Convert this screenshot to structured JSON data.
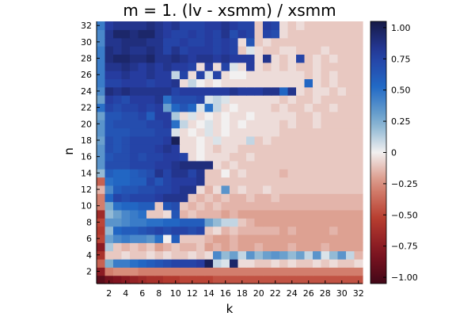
{
  "chart_data": {
    "type": "heatmap",
    "title": "m = 1. (lv - xsmm) / xsmm",
    "xlabel": "k",
    "ylabel": "n",
    "x": [
      1,
      2,
      3,
      4,
      5,
      6,
      7,
      8,
      9,
      10,
      11,
      12,
      13,
      14,
      15,
      16,
      17,
      18,
      19,
      20,
      21,
      22,
      23,
      24,
      25,
      26,
      27,
      28,
      29,
      30,
      31,
      32
    ],
    "y": [
      1,
      2,
      3,
      4,
      5,
      6,
      7,
      8,
      9,
      10,
      11,
      12,
      13,
      14,
      15,
      16,
      17,
      18,
      19,
      20,
      21,
      22,
      23,
      24,
      25,
      26,
      27,
      28,
      29,
      30,
      31,
      32
    ],
    "x_ticks": [
      2,
      4,
      6,
      8,
      10,
      12,
      14,
      16,
      18,
      20,
      22,
      24,
      26,
      28,
      30,
      32
    ],
    "y_ticks": [
      2,
      4,
      6,
      8,
      10,
      12,
      14,
      16,
      18,
      20,
      22,
      24,
      26,
      28,
      30,
      32
    ],
    "xlim": [
      0.5,
      32.5
    ],
    "ylim": [
      0.5,
      32.5
    ],
    "colorbar": {
      "colormap": "balance",
      "range": [
        -1.05,
        1.05
      ],
      "ticks": [
        -1.0,
        -0.75,
        -0.5,
        -0.25,
        0,
        0.25,
        0.5,
        0.75,
        1.0
      ],
      "tick_labels": [
        "−1.00",
        "−0.75",
        "−0.50",
        "−0.25",
        "0",
        "0.25",
        "0.50",
        "0.75",
        "1.00"
      ],
      "placement": "right"
    },
    "grid": false,
    "z": [
      [
        -0.95,
        -0.85,
        -0.8,
        -0.75,
        -0.7,
        -0.65,
        -0.6,
        -0.6,
        -0.55,
        -0.55,
        -0.5,
        -0.5,
        -0.5,
        -0.5,
        -0.45,
        -0.45,
        -0.45,
        -0.45,
        -0.45,
        -0.45,
        -0.45,
        -0.45,
        -0.45,
        -0.45,
        -0.45,
        -0.45,
        -0.45,
        -0.45,
        -0.45,
        -0.45,
        -0.45,
        -0.45
      ],
      [
        -0.75,
        -0.3,
        -0.25,
        -0.25,
        -0.25,
        -0.3,
        -0.3,
        -0.3,
        -0.3,
        -0.3,
        -0.3,
        -0.3,
        -0.3,
        -0.3,
        -0.3,
        -0.3,
        -0.3,
        -0.3,
        -0.3,
        -0.3,
        -0.3,
        -0.3,
        -0.3,
        -0.3,
        -0.3,
        -0.3,
        -0.3,
        -0.3,
        -0.3,
        -0.3,
        -0.3,
        -0.3
      ],
      [
        -0.4,
        0.25,
        0.45,
        0.45,
        0.5,
        0.55,
        0.6,
        0.65,
        0.7,
        0.75,
        0.75,
        0.75,
        0.8,
        1.0,
        0.1,
        0.05,
        0.95,
        -0.05,
        -0.05,
        -0.1,
        -0.1,
        -0.05,
        -0.1,
        -0.05,
        -0.1,
        -0.1,
        -0.05,
        -0.1,
        -0.05,
        -0.1,
        -0.1,
        -0.05
      ],
      [
        -0.6,
        -0.1,
        -0.1,
        -0.05,
        -0.1,
        -0.1,
        -0.05,
        -0.1,
        -0.05,
        -0.1,
        -0.1,
        -0.05,
        -0.1,
        -0.05,
        0.4,
        0.2,
        0.3,
        0.1,
        0.35,
        0.2,
        0.3,
        0.35,
        0.3,
        0.2,
        0.3,
        0.1,
        0.35,
        0.05,
        0.2,
        0.35,
        0.1,
        -0.15
      ],
      [
        -0.75,
        0.15,
        -0.1,
        -0.15,
        -0.1,
        -0.15,
        -0.1,
        -0.2,
        -0.15,
        -0.1,
        -0.15,
        -0.15,
        -0.1,
        -0.2,
        -0.15,
        -0.2,
        -0.15,
        -0.2,
        -0.2,
        -0.15,
        -0.2,
        -0.2,
        -0.2,
        -0.15,
        -0.2,
        -0.2,
        -0.2,
        -0.15,
        -0.2,
        -0.2,
        -0.2,
        -0.2
      ],
      [
        -0.5,
        0.3,
        0.4,
        0.45,
        0.4,
        0.4,
        0.35,
        0.5,
        0.0,
        0.6,
        -0.1,
        -0.1,
        -0.1,
        -0.15,
        -0.2,
        -0.2,
        -0.15,
        -0.2,
        -0.2,
        -0.2,
        -0.2,
        -0.2,
        -0.2,
        -0.2,
        -0.2,
        -0.2,
        -0.2,
        -0.2,
        -0.2,
        -0.2,
        -0.2,
        -0.2
      ],
      [
        -0.55,
        0.2,
        0.55,
        0.6,
        0.6,
        0.65,
        0.7,
        0.75,
        0.7,
        0.75,
        0.75,
        0.7,
        0.75,
        -0.1,
        -0.05,
        -0.15,
        -0.1,
        -0.15,
        -0.15,
        -0.15,
        -0.15,
        -0.15,
        -0.2,
        -0.15,
        -0.2,
        -0.2,
        -0.2,
        -0.2,
        -0.15,
        -0.2,
        -0.2,
        -0.2
      ],
      [
        -0.5,
        0.35,
        0.35,
        0.4,
        0.45,
        0.45,
        0.5,
        0.5,
        0.55,
        0.55,
        0.6,
        0.6,
        0.6,
        0.3,
        0.2,
        0.1,
        0.1,
        -0.1,
        -0.15,
        -0.2,
        -0.2,
        -0.2,
        -0.2,
        -0.2,
        -0.2,
        -0.2,
        -0.2,
        -0.2,
        -0.2,
        -0.2,
        -0.2,
        -0.2
      ],
      [
        -0.65,
        0.2,
        0.3,
        0.4,
        0.45,
        0.5,
        -0.1,
        -0.1,
        -0.05,
        0.65,
        -0.15,
        -0.1,
        -0.15,
        -0.15,
        -0.15,
        -0.2,
        -0.15,
        -0.2,
        -0.2,
        -0.2,
        -0.2,
        -0.2,
        -0.2,
        -0.2,
        -0.2,
        -0.2,
        -0.2,
        -0.2,
        -0.2,
        -0.2,
        -0.2,
        -0.2
      ],
      [
        -0.3,
        0.25,
        0.5,
        0.55,
        0.55,
        0.6,
        0.6,
        -0.1,
        0.65,
        0.7,
        -0.1,
        -0.15,
        -0.1,
        -0.15,
        -0.1,
        -0.15,
        -0.15,
        -0.15,
        -0.15,
        -0.15,
        -0.15,
        -0.15,
        -0.15,
        -0.15,
        -0.15,
        -0.15,
        -0.15,
        -0.15,
        -0.15,
        -0.15,
        -0.15,
        -0.15
      ],
      [
        -0.3,
        0.55,
        0.75,
        0.7,
        0.75,
        0.75,
        0.75,
        0.8,
        0.85,
        0.85,
        0.85,
        -0.1,
        -0.15,
        -0.1,
        -0.15,
        -0.1,
        -0.15,
        -0.15,
        -0.1,
        -0.15,
        -0.15,
        -0.1,
        -0.15,
        -0.15,
        -0.15,
        -0.15,
        -0.15,
        -0.15,
        -0.15,
        -0.15,
        -0.15,
        -0.15
      ],
      [
        -0.15,
        0.4,
        0.6,
        0.65,
        0.65,
        0.7,
        0.7,
        0.75,
        0.75,
        0.8,
        0.85,
        0.85,
        -0.05,
        -0.15,
        -0.05,
        0.35,
        -0.1,
        -0.05,
        -0.1,
        -0.1,
        -0.05,
        -0.1,
        -0.1,
        -0.1,
        -0.1,
        -0.1,
        -0.1,
        -0.1,
        -0.1,
        -0.1,
        -0.1,
        -0.1
      ],
      [
        -0.4,
        0.5,
        0.55,
        0.55,
        0.6,
        0.6,
        0.75,
        0.65,
        0.75,
        0.8,
        0.8,
        0.8,
        0.85,
        -0.1,
        -0.1,
        -0.1,
        -0.1,
        -0.1,
        -0.1,
        -0.1,
        -0.1,
        -0.1,
        -0.1,
        -0.1,
        -0.1,
        -0.1,
        -0.1,
        -0.1,
        -0.1,
        -0.1,
        -0.1,
        -0.1
      ],
      [
        0.2,
        0.6,
        0.55,
        0.55,
        0.6,
        0.65,
        0.7,
        0.85,
        0.75,
        0.85,
        0.85,
        0.75,
        0.85,
        -0.1,
        -0.1,
        0.0,
        -0.1,
        -0.05,
        -0.1,
        -0.1,
        -0.1,
        -0.1,
        -0.15,
        -0.1,
        -0.1,
        -0.1,
        -0.1,
        -0.1,
        -0.1,
        -0.1,
        -0.1,
        -0.1
      ],
      [
        0.35,
        0.7,
        0.7,
        0.7,
        0.75,
        0.75,
        0.75,
        0.8,
        0.8,
        0.85,
        0.9,
        0.9,
        0.9,
        0.9,
        -0.05,
        -0.1,
        -0.05,
        -0.1,
        -0.1,
        -0.1,
        -0.1,
        -0.1,
        -0.1,
        -0.1,
        -0.1,
        -0.1,
        -0.1,
        -0.1,
        -0.1,
        -0.1,
        -0.1,
        -0.1
      ],
      [
        0.35,
        0.65,
        0.7,
        0.7,
        0.75,
        0.7,
        0.75,
        0.75,
        0.8,
        0.8,
        0.75,
        -0.05,
        0.0,
        -0.05,
        -0.05,
        -0.05,
        -0.1,
        -0.1,
        -0.05,
        -0.1,
        -0.1,
        -0.1,
        -0.1,
        -0.1,
        -0.1,
        -0.1,
        -0.1,
        -0.1,
        -0.1,
        -0.1,
        -0.1,
        -0.1
      ],
      [
        0.35,
        0.7,
        0.65,
        0.7,
        0.75,
        0.75,
        0.75,
        0.8,
        0.85,
        0.8,
        -0.05,
        -0.05,
        0.0,
        -0.05,
        -0.1,
        -0.05,
        -0.05,
        -0.1,
        -0.1,
        -0.1,
        -0.1,
        -0.1,
        -0.1,
        -0.1,
        -0.1,
        -0.1,
        -0.1,
        -0.1,
        -0.1,
        -0.1,
        -0.1,
        -0.1
      ],
      [
        0.3,
        0.7,
        0.65,
        0.7,
        0.75,
        0.75,
        0.75,
        0.75,
        0.8,
        1.0,
        -0.05,
        -0.05,
        0.0,
        -0.05,
        0.05,
        -0.05,
        -0.05,
        -0.05,
        0.1,
        -0.1,
        -0.05,
        -0.1,
        -0.1,
        -0.1,
        -0.1,
        -0.1,
        -0.1,
        -0.1,
        -0.1,
        -0.1,
        -0.1,
        -0.1
      ],
      [
        0.35,
        0.65,
        0.65,
        0.65,
        0.7,
        0.7,
        0.7,
        0.75,
        0.75,
        0.05,
        -0.05,
        0.0,
        -0.05,
        0.05,
        -0.05,
        0.0,
        -0.05,
        -0.05,
        -0.05,
        -0.05,
        -0.05,
        -0.05,
        -0.1,
        -0.1,
        -0.1,
        -0.1,
        -0.1,
        -0.1,
        -0.1,
        -0.1,
        -0.1,
        -0.1
      ],
      [
        0.35,
        0.65,
        0.7,
        0.7,
        0.7,
        0.7,
        0.75,
        0.75,
        0.8,
        0.5,
        0.1,
        -0.05,
        0.0,
        0.05,
        -0.05,
        0.0,
        -0.05,
        0.0,
        -0.05,
        -0.05,
        -0.05,
        -0.05,
        -0.1,
        -0.05,
        -0.1,
        -0.1,
        -0.05,
        -0.1,
        -0.1,
        -0.1,
        -0.1,
        -0.1
      ],
      [
        0.3,
        0.65,
        0.65,
        0.7,
        0.7,
        0.75,
        0.6,
        0.8,
        0.8,
        0.15,
        -0.05,
        0.05,
        -0.05,
        0.0,
        -0.05,
        0.0,
        -0.05,
        -0.05,
        0.0,
        -0.05,
        -0.05,
        -0.05,
        -0.05,
        -0.05,
        -0.1,
        -0.1,
        -0.05,
        -0.1,
        -0.1,
        -0.1,
        -0.1,
        -0.1
      ],
      [
        0.5,
        0.75,
        0.7,
        0.75,
        0.75,
        0.8,
        0.75,
        0.8,
        0.3,
        0.55,
        0.65,
        0.55,
        0.05,
        0.5,
        0.1,
        -0.05,
        0.0,
        -0.05,
        -0.05,
        -0.05,
        -0.05,
        -0.1,
        -0.05,
        -0.1,
        -0.1,
        -0.05,
        -0.1,
        -0.1,
        -0.05,
        -0.1,
        -0.1,
        -0.1
      ],
      [
        0.3,
        0.8,
        0.75,
        0.7,
        0.8,
        0.8,
        0.8,
        0.85,
        0.5,
        0.7,
        0.7,
        0.7,
        0.75,
        0.05,
        0.1,
        0.05,
        -0.05,
        -0.05,
        -0.05,
        -0.05,
        -0.05,
        -0.05,
        -0.1,
        -0.05,
        -0.1,
        -0.1,
        -0.05,
        -0.1,
        -0.1,
        -0.1,
        -0.1,
        -0.1
      ],
      [
        0.4,
        0.9,
        0.85,
        0.9,
        0.85,
        0.85,
        0.85,
        0.85,
        0.85,
        0.75,
        0.8,
        0.8,
        0.8,
        0.8,
        0.8,
        0.8,
        0.85,
        0.8,
        0.8,
        0.8,
        0.85,
        0.85,
        0.55,
        0.85,
        -0.05,
        -0.1,
        -0.05,
        -0.05,
        -0.1,
        -0.05,
        -0.1,
        -0.1
      ],
      [
        0.45,
        0.75,
        0.75,
        0.8,
        0.8,
        0.8,
        0.75,
        0.8,
        0.8,
        0.85,
        -0.05,
        0.1,
        0.0,
        -0.05,
        0.0,
        -0.05,
        -0.05,
        -0.05,
        -0.05,
        -0.05,
        -0.05,
        -0.05,
        -0.05,
        -0.05,
        -0.05,
        0.55,
        -0.05,
        -0.1,
        -0.05,
        -0.1,
        -0.1,
        -0.1
      ],
      [
        0.45,
        0.8,
        0.8,
        0.85,
        0.8,
        0.8,
        0.85,
        0.8,
        0.8,
        0.1,
        0.75,
        -0.05,
        0.75,
        0.05,
        0.75,
        -0.05,
        0.0,
        0.0,
        -0.05,
        -0.05,
        -0.05,
        -0.05,
        -0.05,
        -0.05,
        -0.05,
        -0.1,
        -0.05,
        -0.1,
        -0.05,
        -0.1,
        -0.1,
        -0.1
      ],
      [
        0.45,
        0.85,
        0.85,
        0.9,
        0.85,
        0.8,
        0.85,
        0.8,
        0.85,
        0.8,
        0.8,
        0.75,
        -0.05,
        0.8,
        -0.05,
        0.75,
        0.05,
        -0.05,
        0.8,
        -0.05,
        -0.1,
        -0.05,
        -0.1,
        -0.05,
        -0.1,
        -0.1,
        -0.05,
        -0.1,
        -0.1,
        -0.1,
        -0.1,
        -0.1
      ],
      [
        0.45,
        0.9,
        0.95,
        0.95,
        0.9,
        0.9,
        0.95,
        0.85,
        0.85,
        0.9,
        0.85,
        0.8,
        0.85,
        0.85,
        0.8,
        0.85,
        0.8,
        0.8,
        0.8,
        -0.05,
        0.85,
        -0.05,
        -0.1,
        -0.05,
        0.75,
        -0.1,
        -0.05,
        -0.1,
        -0.05,
        -0.1,
        -0.1,
        -0.1
      ],
      [
        0.45,
        0.9,
        0.85,
        0.9,
        0.85,
        0.85,
        0.9,
        0.85,
        0.75,
        0.85,
        0.75,
        0.8,
        0.8,
        0.8,
        0.75,
        0.8,
        0.75,
        -0.1,
        0.05,
        -0.05,
        -0.1,
        -0.1,
        -0.05,
        -0.05,
        -0.1,
        -0.1,
        -0.1,
        -0.05,
        -0.1,
        -0.1,
        -0.1,
        -0.1
      ],
      [
        0.4,
        0.85,
        0.85,
        0.9,
        0.9,
        0.9,
        0.85,
        0.85,
        0.75,
        0.75,
        0.8,
        0.75,
        0.75,
        0.8,
        0.75,
        0.8,
        0.75,
        -0.05,
        0.65,
        -0.1,
        -0.05,
        -0.1,
        -0.1,
        -0.1,
        -0.1,
        -0.1,
        -0.1,
        -0.1,
        -0.1,
        -0.1,
        -0.1,
        -0.1
      ],
      [
        0.4,
        0.85,
        0.95,
        0.95,
        0.9,
        0.95,
        0.95,
        0.85,
        0.8,
        0.75,
        0.75,
        0.8,
        0.75,
        0.8,
        0.75,
        0.85,
        0.7,
        0.8,
        0.75,
        -0.1,
        0.75,
        0.7,
        -0.05,
        -0.1,
        -0.1,
        -0.1,
        -0.1,
        -0.1,
        -0.1,
        -0.1,
        -0.1,
        -0.1
      ],
      [
        0.45,
        0.8,
        0.85,
        0.85,
        0.85,
        0.85,
        0.9,
        0.85,
        0.8,
        0.85,
        0.75,
        0.75,
        0.75,
        0.8,
        0.8,
        0.85,
        0.8,
        0.75,
        0.75,
        -0.1,
        0.8,
        0.75,
        -0.05,
        -0.1,
        -0.05,
        -0.1,
        -0.1,
        -0.1,
        -0.1,
        -0.1,
        -0.1,
        -0.1
      ]
    ]
  }
}
